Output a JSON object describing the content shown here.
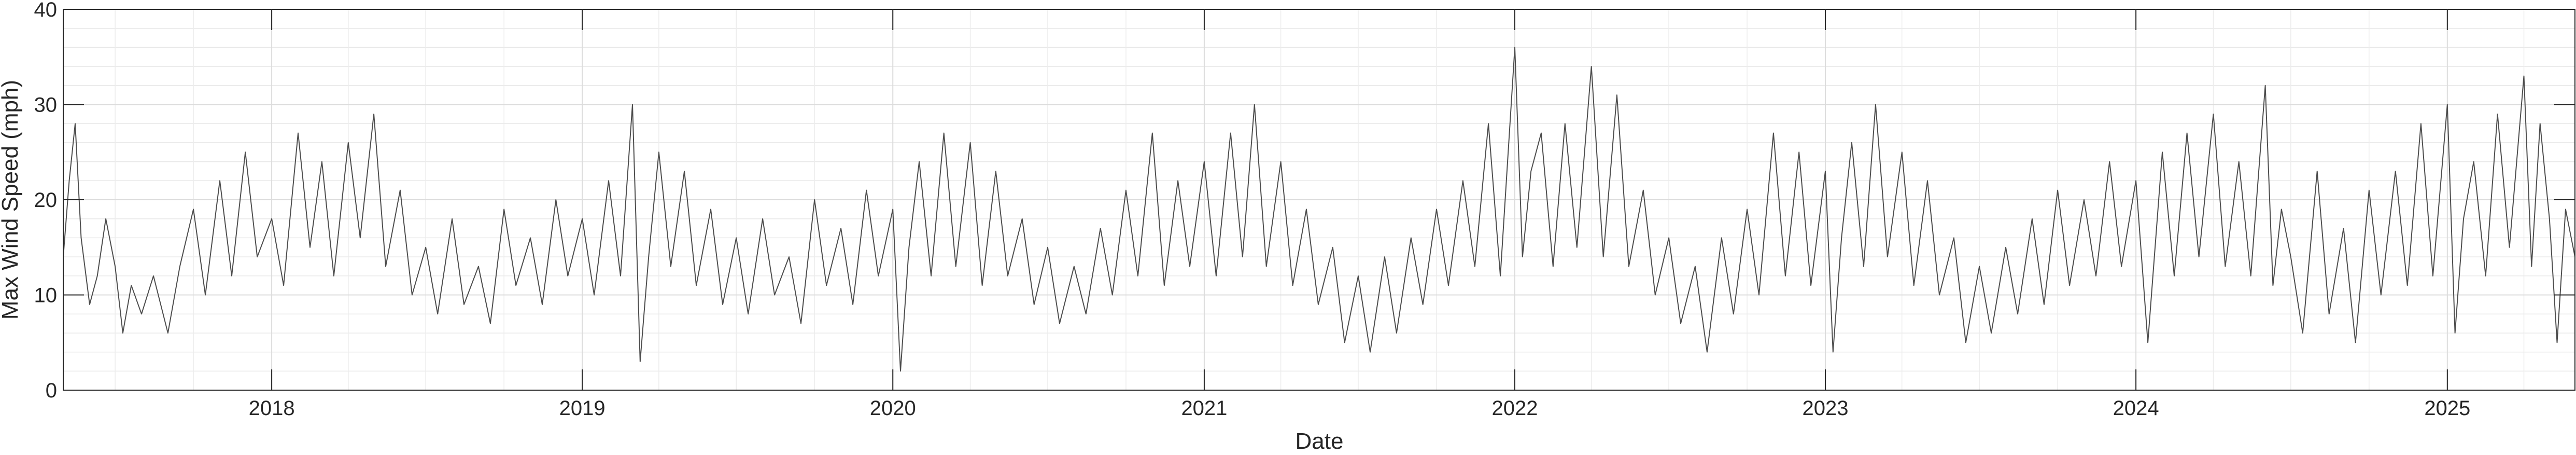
{
  "chart_data": {
    "type": "line",
    "title": "",
    "xlabel": "Date",
    "ylabel": "Max Wind Speed (mph)",
    "ylim": [
      0,
      40
    ],
    "xlim": [
      "2017-05-01",
      "2025-05-31"
    ],
    "yticks": [
      "0",
      "10",
      "20",
      "30",
      "40"
    ],
    "xticks": [
      {
        "label": "2018",
        "date": "2018-01-01"
      },
      {
        "label": "2019",
        "date": "2019-01-01"
      },
      {
        "label": "2020",
        "date": "2020-01-01"
      },
      {
        "label": "2021",
        "date": "2021-01-01"
      },
      {
        "label": "2022",
        "date": "2022-01-01"
      },
      {
        "label": "2023",
        "date": "2023-01-01"
      },
      {
        "label": "2024",
        "date": "2024-01-01"
      },
      {
        "label": "2025",
        "date": "2025-01-01"
      }
    ],
    "grid": "on (major and minor)",
    "line_color": "#4d4d4d",
    "series": [
      {
        "points": [
          [
            "2017-05-01",
            14
          ],
          [
            "2017-05-08",
            22
          ],
          [
            "2017-05-15",
            28
          ],
          [
            "2017-05-22",
            16
          ],
          [
            "2017-06-01",
            9
          ],
          [
            "2017-06-10",
            12
          ],
          [
            "2017-06-20",
            18
          ],
          [
            "2017-07-01",
            13
          ],
          [
            "2017-07-10",
            6
          ],
          [
            "2017-07-20",
            11
          ],
          [
            "2017-08-01",
            8
          ],
          [
            "2017-08-15",
            12
          ],
          [
            "2017-09-01",
            6
          ],
          [
            "2017-09-15",
            13
          ],
          [
            "2017-10-01",
            19
          ],
          [
            "2017-10-15",
            10
          ],
          [
            "2017-11-01",
            22
          ],
          [
            "2017-11-15",
            12
          ],
          [
            "2017-12-01",
            25
          ],
          [
            "2017-12-15",
            14
          ],
          [
            "2018-01-01",
            18
          ],
          [
            "2018-01-15",
            11
          ],
          [
            "2018-02-01",
            27
          ],
          [
            "2018-02-15",
            15
          ],
          [
            "2018-03-01",
            24
          ],
          [
            "2018-03-15",
            12
          ],
          [
            "2018-04-01",
            26
          ],
          [
            "2018-04-15",
            16
          ],
          [
            "2018-05-01",
            29
          ],
          [
            "2018-05-15",
            13
          ],
          [
            "2018-06-01",
            21
          ],
          [
            "2018-06-15",
            10
          ],
          [
            "2018-07-01",
            15
          ],
          [
            "2018-07-15",
            8
          ],
          [
            "2018-08-01",
            18
          ],
          [
            "2018-08-15",
            9
          ],
          [
            "2018-09-01",
            13
          ],
          [
            "2018-09-15",
            7
          ],
          [
            "2018-10-01",
            19
          ],
          [
            "2018-10-15",
            11
          ],
          [
            "2018-11-01",
            16
          ],
          [
            "2018-11-15",
            9
          ],
          [
            "2018-12-01",
            20
          ],
          [
            "2018-12-15",
            12
          ],
          [
            "2019-01-01",
            18
          ],
          [
            "2019-01-15",
            10
          ],
          [
            "2019-02-01",
            22
          ],
          [
            "2019-02-15",
            12
          ],
          [
            "2019-03-01",
            30
          ],
          [
            "2019-03-10",
            3
          ],
          [
            "2019-03-20",
            14
          ],
          [
            "2019-04-01",
            25
          ],
          [
            "2019-04-15",
            13
          ],
          [
            "2019-05-01",
            23
          ],
          [
            "2019-05-15",
            11
          ],
          [
            "2019-06-01",
            19
          ],
          [
            "2019-06-15",
            9
          ],
          [
            "2019-07-01",
            16
          ],
          [
            "2019-07-15",
            8
          ],
          [
            "2019-08-01",
            18
          ],
          [
            "2019-08-15",
            10
          ],
          [
            "2019-09-01",
            14
          ],
          [
            "2019-09-15",
            7
          ],
          [
            "2019-10-01",
            20
          ],
          [
            "2019-10-15",
            11
          ],
          [
            "2019-11-01",
            17
          ],
          [
            "2019-11-15",
            9
          ],
          [
            "2019-12-01",
            21
          ],
          [
            "2019-12-15",
            12
          ],
          [
            "2020-01-01",
            19
          ],
          [
            "2020-01-10",
            2
          ],
          [
            "2020-01-20",
            15
          ],
          [
            "2020-02-01",
            24
          ],
          [
            "2020-02-15",
            12
          ],
          [
            "2020-03-01",
            27
          ],
          [
            "2020-03-15",
            13
          ],
          [
            "2020-04-01",
            26
          ],
          [
            "2020-04-15",
            11
          ],
          [
            "2020-05-01",
            23
          ],
          [
            "2020-05-15",
            12
          ],
          [
            "2020-06-01",
            18
          ],
          [
            "2020-06-15",
            9
          ],
          [
            "2020-07-01",
            15
          ],
          [
            "2020-07-15",
            7
          ],
          [
            "2020-08-01",
            13
          ],
          [
            "2020-08-15",
            8
          ],
          [
            "2020-09-01",
            17
          ],
          [
            "2020-09-15",
            10
          ],
          [
            "2020-10-01",
            21
          ],
          [
            "2020-10-15",
            12
          ],
          [
            "2020-11-01",
            27
          ],
          [
            "2020-11-15",
            11
          ],
          [
            "2020-12-01",
            22
          ],
          [
            "2020-12-15",
            13
          ],
          [
            "2021-01-01",
            24
          ],
          [
            "2021-01-15",
            12
          ],
          [
            "2021-02-01",
            27
          ],
          [
            "2021-02-15",
            14
          ],
          [
            "2021-03-01",
            30
          ],
          [
            "2021-03-15",
            13
          ],
          [
            "2021-04-01",
            24
          ],
          [
            "2021-04-15",
            11
          ],
          [
            "2021-05-01",
            19
          ],
          [
            "2021-05-15",
            9
          ],
          [
            "2021-06-01",
            15
          ],
          [
            "2021-06-15",
            5
          ],
          [
            "2021-07-01",
            12
          ],
          [
            "2021-07-15",
            4
          ],
          [
            "2021-08-01",
            14
          ],
          [
            "2021-08-15",
            6
          ],
          [
            "2021-09-01",
            16
          ],
          [
            "2021-09-15",
            9
          ],
          [
            "2021-10-01",
            19
          ],
          [
            "2021-10-15",
            11
          ],
          [
            "2021-11-01",
            22
          ],
          [
            "2021-11-15",
            13
          ],
          [
            "2021-12-01",
            28
          ],
          [
            "2021-12-15",
            12
          ],
          [
            "2022-01-01",
            36
          ],
          [
            "2022-01-10",
            14
          ],
          [
            "2022-01-20",
            23
          ],
          [
            "2022-02-01",
            27
          ],
          [
            "2022-02-15",
            13
          ],
          [
            "2022-03-01",
            28
          ],
          [
            "2022-03-15",
            15
          ],
          [
            "2022-04-01",
            34
          ],
          [
            "2022-04-15",
            14
          ],
          [
            "2022-05-01",
            31
          ],
          [
            "2022-05-15",
            13
          ],
          [
            "2022-06-01",
            21
          ],
          [
            "2022-06-15",
            10
          ],
          [
            "2022-07-01",
            16
          ],
          [
            "2022-07-15",
            7
          ],
          [
            "2022-08-01",
            13
          ],
          [
            "2022-08-15",
            4
          ],
          [
            "2022-09-01",
            16
          ],
          [
            "2022-09-15",
            8
          ],
          [
            "2022-10-01",
            19
          ],
          [
            "2022-10-15",
            10
          ],
          [
            "2022-11-01",
            27
          ],
          [
            "2022-11-15",
            12
          ],
          [
            "2022-12-01",
            25
          ],
          [
            "2022-12-15",
            11
          ],
          [
            "2023-01-01",
            23
          ],
          [
            "2023-01-10",
            4
          ],
          [
            "2023-01-20",
            16
          ],
          [
            "2023-02-01",
            26
          ],
          [
            "2023-02-15",
            13
          ],
          [
            "2023-03-01",
            30
          ],
          [
            "2023-03-15",
            14
          ],
          [
            "2023-04-01",
            25
          ],
          [
            "2023-04-15",
            11
          ],
          [
            "2023-05-01",
            22
          ],
          [
            "2023-05-15",
            10
          ],
          [
            "2023-06-01",
            16
          ],
          [
            "2023-06-15",
            5
          ],
          [
            "2023-07-01",
            13
          ],
          [
            "2023-07-15",
            6
          ],
          [
            "2023-08-01",
            15
          ],
          [
            "2023-08-15",
            8
          ],
          [
            "2023-09-01",
            18
          ],
          [
            "2023-09-15",
            9
          ],
          [
            "2023-10-01",
            21
          ],
          [
            "2023-10-15",
            11
          ],
          [
            "2023-11-01",
            20
          ],
          [
            "2023-11-15",
            12
          ],
          [
            "2023-12-01",
            24
          ],
          [
            "2023-12-15",
            13
          ],
          [
            "2024-01-01",
            22
          ],
          [
            "2024-01-15",
            5
          ],
          [
            "2024-02-01",
            25
          ],
          [
            "2024-02-15",
            12
          ],
          [
            "2024-03-01",
            27
          ],
          [
            "2024-03-15",
            14
          ],
          [
            "2024-04-01",
            29
          ],
          [
            "2024-04-15",
            13
          ],
          [
            "2024-05-01",
            24
          ],
          [
            "2024-05-15",
            12
          ],
          [
            "2024-06-01",
            32
          ],
          [
            "2024-06-10",
            11
          ],
          [
            "2024-06-20",
            19
          ],
          [
            "2024-07-01",
            14
          ],
          [
            "2024-07-15",
            6
          ],
          [
            "2024-08-01",
            23
          ],
          [
            "2024-08-15",
            8
          ],
          [
            "2024-09-01",
            17
          ],
          [
            "2024-09-15",
            5
          ],
          [
            "2024-10-01",
            21
          ],
          [
            "2024-10-15",
            10
          ],
          [
            "2024-11-01",
            23
          ],
          [
            "2024-11-15",
            11
          ],
          [
            "2024-12-01",
            28
          ],
          [
            "2024-12-15",
            12
          ],
          [
            "2025-01-01",
            30
          ],
          [
            "2025-01-10",
            6
          ],
          [
            "2025-01-20",
            18
          ],
          [
            "2025-02-01",
            24
          ],
          [
            "2025-02-15",
            12
          ],
          [
            "2025-03-01",
            29
          ],
          [
            "2025-03-15",
            15
          ],
          [
            "2025-04-01",
            33
          ],
          [
            "2025-04-10",
            13
          ],
          [
            "2025-04-20",
            28
          ],
          [
            "2025-05-01",
            18
          ],
          [
            "2025-05-10",
            5
          ],
          [
            "2025-05-20",
            19
          ],
          [
            "2025-05-31",
            14
          ]
        ]
      }
    ]
  }
}
